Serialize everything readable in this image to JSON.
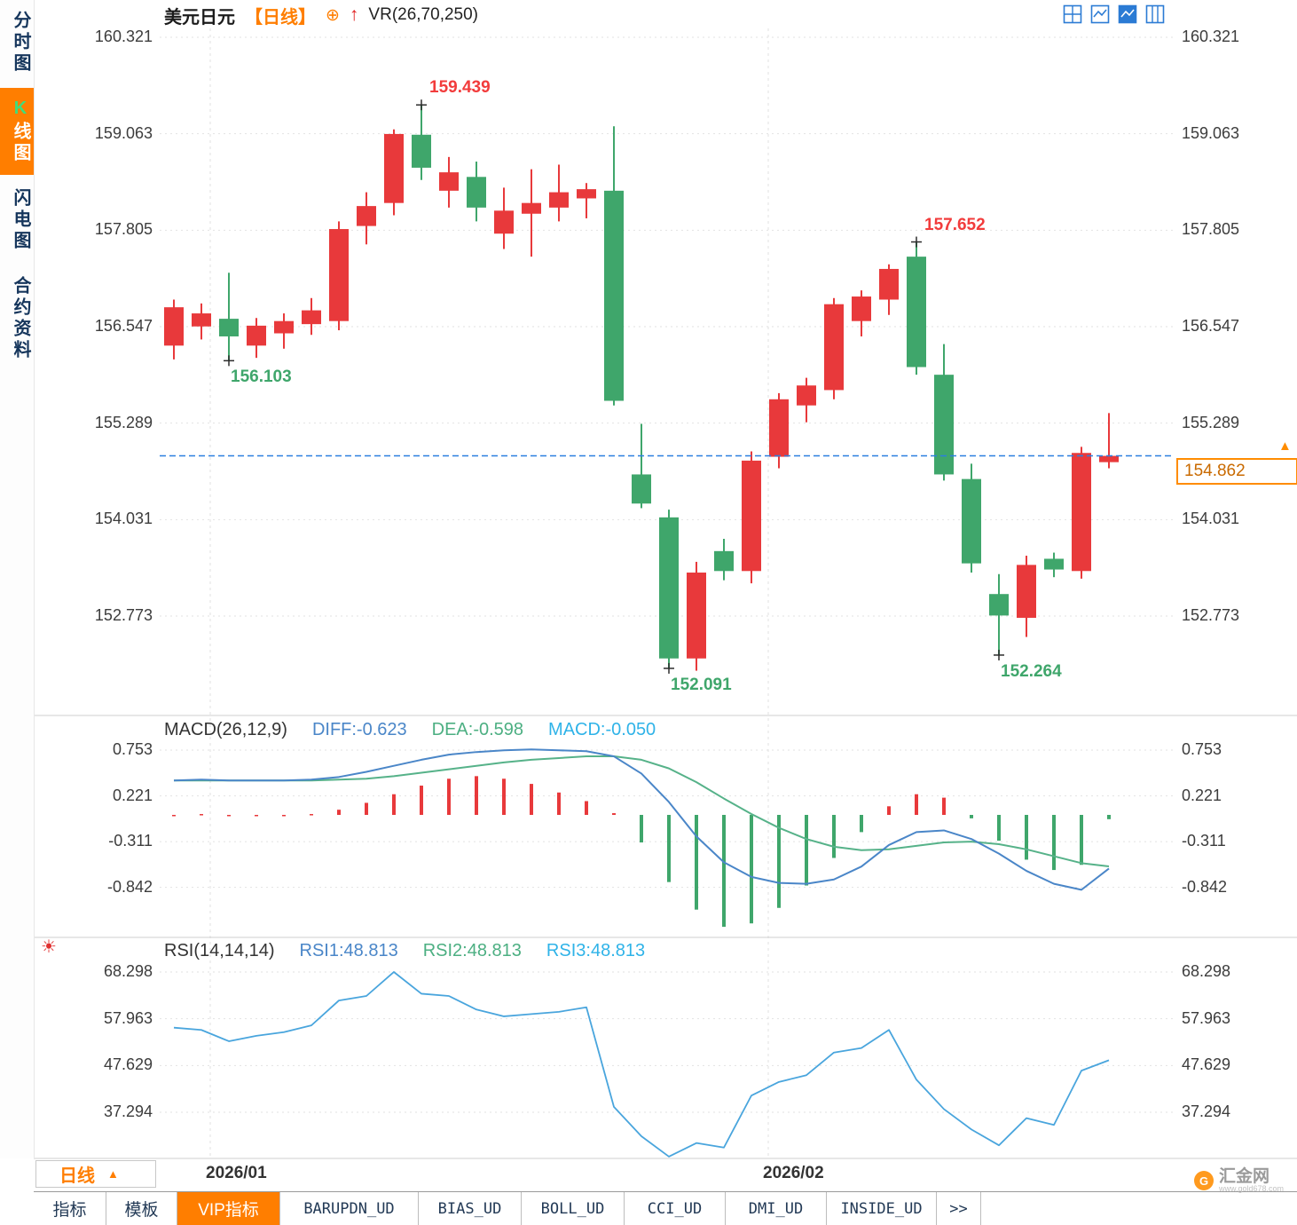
{
  "header": {
    "symbol": "美元日元",
    "period_tag": "【日线】",
    "indicator": "VR(26,70,250)"
  },
  "sidebar": {
    "items": [
      {
        "label": "分时图",
        "active": false
      },
      {
        "label": "K线图",
        "active": true
      },
      {
        "label": "闪电图",
        "active": false
      },
      {
        "label": "合约资料",
        "active": false
      }
    ]
  },
  "price_tag": {
    "value": "154.862"
  },
  "period_selector": {
    "label": "日线",
    "arrow": "▲"
  },
  "macd_header": {
    "title": "MACD(26,12,9)",
    "diff": "DIFF:-0.623",
    "dea": "DEA:-0.598",
    "macd": "MACD:-0.050"
  },
  "rsi_header": {
    "title": "RSI(14,14,14)",
    "rsi1": "RSI1:48.813",
    "rsi2": "RSI2:48.813",
    "rsi3": "RSI3:48.813"
  },
  "bottom_tabs": [
    {
      "label": "指标",
      "active": false,
      "mono": false
    },
    {
      "label": "模板",
      "active": false,
      "mono": false
    },
    {
      "label": "VIP指标",
      "active": true,
      "mono": false
    },
    {
      "label": "BARUPDN_UD",
      "active": false,
      "mono": true
    },
    {
      "label": "BIAS_UD",
      "active": false,
      "mono": true
    },
    {
      "label": "BOLL_UD",
      "active": false,
      "mono": true
    },
    {
      "label": "CCI_UD",
      "active": false,
      "mono": true
    },
    {
      "label": "DMI_UD",
      "active": false,
      "mono": true
    },
    {
      "label": "INSIDE_UD",
      "active": false,
      "mono": true
    },
    {
      "label": ">>",
      "active": false,
      "mono": true
    }
  ],
  "watermark": {
    "name": "汇金网",
    "url": "www.gold678.com"
  },
  "colors": {
    "up": "#e8393b",
    "down": "#3fa66b",
    "diff_line": "#4a86c8",
    "dea_line": "#56b289",
    "rsi_line": "#49a5dd",
    "accent_orange": "#ff7e00",
    "current_line": "#2a7fe0",
    "grid": "#e2e2e2"
  },
  "chart_data": [
    {
      "type": "candlestick",
      "title": "美元日元 日线",
      "y_axis_labels": [
        "160.321",
        "159.063",
        "157.805",
        "156.547",
        "155.289",
        "154.031",
        "152.773"
      ],
      "x_axis_labels": [
        "2026/01",
        "2026/02"
      ],
      "current_price": 154.862,
      "candles": [
        [
          156.3,
          156.9,
          156.12,
          156.8
        ],
        [
          156.55,
          156.85,
          156.38,
          156.72
        ],
        [
          156.65,
          157.25,
          156.103,
          156.42
        ],
        [
          156.3,
          156.66,
          156.14,
          156.56
        ],
        [
          156.46,
          156.72,
          156.26,
          156.62
        ],
        [
          156.58,
          156.92,
          156.44,
          156.76
        ],
        [
          156.62,
          157.92,
          156.5,
          157.82
        ],
        [
          157.86,
          158.3,
          157.62,
          158.12
        ],
        [
          158.16,
          159.12,
          158.0,
          159.06
        ],
        [
          159.05,
          159.439,
          158.46,
          158.62
        ],
        [
          158.32,
          158.76,
          158.1,
          158.56
        ],
        [
          158.5,
          158.7,
          157.92,
          158.1
        ],
        [
          157.76,
          158.36,
          157.56,
          158.06
        ],
        [
          158.02,
          158.6,
          157.46,
          158.16
        ],
        [
          158.1,
          158.66,
          157.92,
          158.3
        ],
        [
          158.22,
          158.42,
          157.96,
          158.34
        ],
        [
          158.32,
          159.16,
          155.52,
          155.58
        ],
        [
          154.62,
          155.28,
          154.18,
          154.24
        ],
        [
          154.06,
          154.16,
          152.091,
          152.22
        ],
        [
          152.22,
          153.48,
          152.06,
          153.34
        ],
        [
          153.62,
          153.78,
          153.24,
          153.36
        ],
        [
          153.36,
          154.92,
          153.2,
          154.8
        ],
        [
          154.85,
          155.68,
          154.7,
          155.6
        ],
        [
          155.52,
          155.88,
          155.3,
          155.78
        ],
        [
          155.72,
          156.92,
          155.6,
          156.84
        ],
        [
          156.62,
          157.02,
          156.42,
          156.94
        ],
        [
          156.9,
          157.36,
          156.7,
          157.3
        ],
        [
          157.46,
          157.652,
          155.92,
          156.02
        ],
        [
          155.92,
          156.32,
          154.54,
          154.62
        ],
        [
          154.56,
          154.76,
          153.34,
          153.46
        ],
        [
          153.06,
          153.32,
          152.264,
          152.78
        ],
        [
          152.75,
          153.56,
          152.5,
          153.44
        ],
        [
          153.52,
          153.6,
          153.28,
          153.38
        ],
        [
          153.36,
          154.98,
          153.26,
          154.9
        ],
        [
          154.78,
          155.42,
          154.7,
          154.862
        ]
      ],
      "annotations": [
        {
          "label": "159.439",
          "index": 9,
          "pos": "above"
        },
        {
          "label": "156.103",
          "index": 2,
          "pos": "below"
        },
        {
          "label": "157.652",
          "index": 27,
          "pos": "above"
        },
        {
          "label": "152.091",
          "index": 18,
          "pos": "below"
        },
        {
          "label": "152.264",
          "index": 30,
          "pos": "below"
        }
      ]
    },
    {
      "type": "macd",
      "params": "MACD(26,12,9)",
      "y_axis_labels": [
        "0.753",
        "0.221",
        "-0.311",
        "-0.842"
      ],
      "latest": {
        "diff": -0.623,
        "dea": -0.598,
        "macd": -0.05
      },
      "series": [
        {
          "name": "DIFF",
          "values": [
            0.4,
            0.41,
            0.4,
            0.4,
            0.4,
            0.41,
            0.44,
            0.5,
            0.57,
            0.64,
            0.7,
            0.73,
            0.75,
            0.76,
            0.75,
            0.74,
            0.68,
            0.48,
            0.15,
            -0.25,
            -0.55,
            -0.72,
            -0.79,
            -0.8,
            -0.75,
            -0.6,
            -0.35,
            -0.2,
            -0.18,
            -0.28,
            -0.45,
            -0.65,
            -0.8,
            -0.87,
            -0.623
          ]
        },
        {
          "name": "DEA",
          "values": [
            0.4,
            0.4,
            0.4,
            0.4,
            0.4,
            0.4,
            0.41,
            0.42,
            0.45,
            0.49,
            0.53,
            0.57,
            0.61,
            0.64,
            0.66,
            0.68,
            0.68,
            0.64,
            0.54,
            0.38,
            0.19,
            0.01,
            -0.15,
            -0.28,
            -0.37,
            -0.41,
            -0.4,
            -0.36,
            -0.32,
            -0.31,
            -0.34,
            -0.4,
            -0.48,
            -0.56,
            -0.598
          ]
        },
        {
          "name": "MACD-histogram",
          "values": [
            0,
            0.01,
            0,
            0,
            0,
            0.01,
            0.06,
            0.14,
            0.24,
            0.34,
            0.42,
            0.45,
            0.42,
            0.36,
            0.26,
            0.16,
            0.02,
            -0.32,
            -0.78,
            -1.1,
            -1.3,
            -1.26,
            -1.08,
            -0.82,
            -0.5,
            -0.2,
            0.1,
            0.24,
            0.2,
            -0.04,
            -0.3,
            -0.52,
            -0.64,
            -0.58,
            -0.05
          ]
        }
      ]
    },
    {
      "type": "line",
      "name": "RSI",
      "params": "RSI(14,14,14)",
      "y_axis_labels": [
        "68.298",
        "57.963",
        "47.629",
        "37.294"
      ],
      "latest": {
        "rsi1": 48.813,
        "rsi2": 48.813,
        "rsi3": 48.813
      },
      "series": [
        {
          "name": "RSI1",
          "values": [
            56.0,
            55.5,
            53.0,
            54.2,
            55.0,
            56.5,
            62.0,
            63.0,
            68.3,
            63.5,
            63.0,
            60.0,
            58.5,
            59.0,
            59.5,
            60.5,
            38.5,
            32.0,
            27.5,
            30.5,
            29.5,
            41.0,
            44.0,
            45.5,
            50.5,
            51.5,
            55.5,
            44.5,
            38.0,
            33.5,
            30.0,
            36.0,
            34.5,
            46.5,
            48.8
          ]
        }
      ]
    }
  ]
}
